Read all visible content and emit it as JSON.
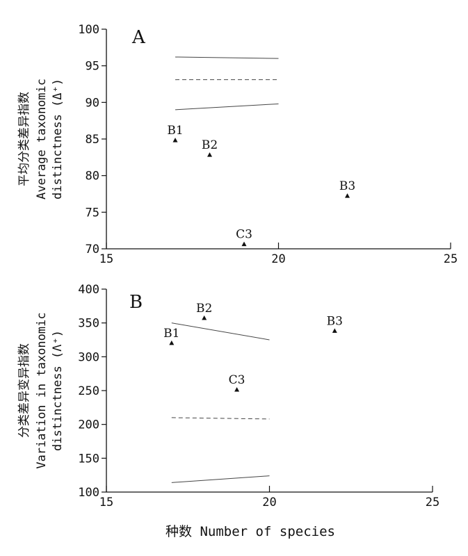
{
  "chart_data": [
    {
      "type": "scatter",
      "panel_label": "A",
      "ylabel_lines": [
        "平均分类差异指数",
        "Average taxonomic",
        "distinctness (Δ⁺)"
      ],
      "xlim": [
        15,
        25
      ],
      "ylim": [
        70,
        100
      ],
      "xticks": [
        "15",
        "20",
        "25"
      ],
      "yticks": [
        "70",
        "75",
        "80",
        "85",
        "90",
        "95",
        "100"
      ],
      "points": [
        {
          "label": "B1",
          "x": 17.0,
          "y": 84.8
        },
        {
          "label": "B2",
          "x": 18.0,
          "y": 82.8
        },
        {
          "label": "B3",
          "x": 22.0,
          "y": 77.2
        },
        {
          "label": "C3",
          "x": 19.0,
          "y": 70.6
        }
      ],
      "lines": [
        {
          "style": "solid",
          "x": [
            17,
            20
          ],
          "y": [
            96.2,
            96.0
          ]
        },
        {
          "style": "dashed",
          "x": [
            17,
            20
          ],
          "y": [
            93.1,
            93.1
          ]
        },
        {
          "style": "solid",
          "x": [
            17,
            20
          ],
          "y": [
            89.0,
            89.8
          ]
        }
      ]
    },
    {
      "type": "scatter",
      "panel_label": "B",
      "ylabel_lines": [
        "分类差异变异指数",
        "Variation in taxonomic",
        "distinctness (Λ⁺)"
      ],
      "xlim": [
        15,
        25
      ],
      "ylim": [
        100,
        400
      ],
      "xticks": [
        "15",
        "20",
        "25"
      ],
      "yticks": [
        "100",
        "150",
        "200",
        "250",
        "300",
        "350",
        "400"
      ],
      "points": [
        {
          "label": "B1",
          "x": 17.0,
          "y": 320
        },
        {
          "label": "B2",
          "x": 18.0,
          "y": 357
        },
        {
          "label": "B3",
          "x": 22.0,
          "y": 338
        },
        {
          "label": "C3",
          "x": 19.0,
          "y": 251
        }
      ],
      "lines": [
        {
          "style": "solid",
          "x": [
            17,
            20
          ],
          "y": [
            350,
            325
          ]
        },
        {
          "style": "dashed",
          "x": [
            17,
            20
          ],
          "y": [
            210,
            208
          ]
        },
        {
          "style": "solid",
          "x": [
            17,
            20
          ],
          "y": [
            114,
            124
          ]
        }
      ]
    }
  ],
  "shared_xlabel": "种数  Number of species"
}
